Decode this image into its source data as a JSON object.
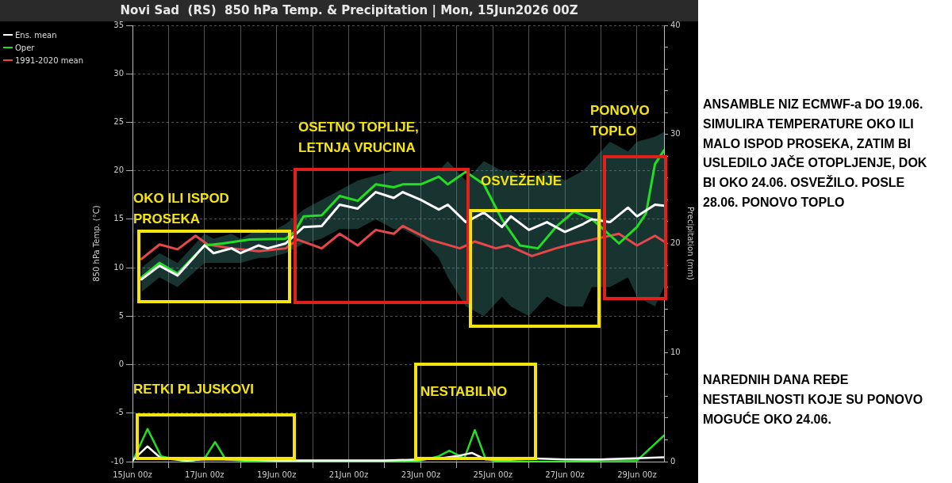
{
  "chart_data": {
    "type": "line",
    "title": "Novi Sad  (RS)  850 hPa Temp. & Precipitation | Mon, 15Jun2026 00Z",
    "ylabel": "850 hPa Temp. (°C)",
    "y2label": "Precipitation (mm)",
    "xlim": [
      "2026-06-15",
      "2026-06-29T18:00"
    ],
    "xticks": [
      {
        "value": "2026-06-15",
        "label": "15Jun 00z"
      },
      {
        "value": "2026-06-16",
        "label": null
      },
      {
        "value": "2026-06-17",
        "label": "17Jun 00z"
      },
      {
        "value": "2026-06-18",
        "label": null
      },
      {
        "value": "2026-06-19",
        "label": "19Jun 00z"
      },
      {
        "value": "2026-06-20",
        "label": null
      },
      {
        "value": "2026-06-21",
        "label": "21Jun 00z"
      },
      {
        "value": "2026-06-22",
        "label": null
      },
      {
        "value": "2026-06-23",
        "label": "23Jun 00z"
      },
      {
        "value": "2026-06-24",
        "label": null
      },
      {
        "value": "2026-06-25",
        "label": "25Jun 00z"
      },
      {
        "value": "2026-06-26",
        "label": null
      },
      {
        "value": "2026-06-27",
        "label": "27Jun 00z"
      },
      {
        "value": "2026-06-28",
        "label": null
      },
      {
        "value": "2026-06-29",
        "label": "29Jun 00z"
      }
    ],
    "ylim": [
      -10,
      35
    ],
    "yticks": [
      -10,
      -5,
      0,
      5,
      10,
      15,
      20,
      25,
      30,
      35
    ],
    "y2lim": [
      0,
      40
    ],
    "y2ticks": [
      0,
      {
        "value": 2,
        "label": null
      },
      {
        "value": 4,
        "label": null
      },
      {
        "value": 6,
        "label": null
      },
      {
        "value": 8,
        "label": null
      },
      10,
      {
        "value": 12,
        "label": null
      },
      {
        "value": 14,
        "label": null
      },
      {
        "value": 16,
        "label": null
      },
      {
        "value": 18,
        "label": null
      },
      20,
      {
        "value": 22,
        "label": null
      },
      {
        "value": 24,
        "label": null
      },
      {
        "value": 26,
        "label": null
      },
      {
        "value": 28,
        "label": null
      },
      30,
      {
        "value": 32,
        "label": null
      },
      {
        "value": 34,
        "label": null
      },
      {
        "value": 36,
        "label": null
      },
      {
        "value": 38,
        "label": null
      },
      40
    ],
    "grid": true,
    "legend": "left",
    "series": [
      {
        "name": "Ens. mean",
        "color": "#ffffff",
        "x": [
          "2026-06-15T06:00",
          "2026-06-15T18:00",
          "2026-06-16T06:00",
          "2026-06-17",
          "2026-06-17T06:00",
          "2026-06-17T18:00",
          "2026-06-18",
          "2026-06-18T12:00",
          "2026-06-18T18:00",
          "2026-06-19T06:00",
          "2026-06-19T18:00",
          "2026-06-20T06:00",
          "2026-06-20T18:00",
          "2026-06-21T06:00",
          "2026-06-21T18:00",
          "2026-06-22T06:00",
          "2026-06-22T12:00",
          "2026-06-23",
          "2026-06-23T12:00",
          "2026-06-23T18:00",
          "2026-06-24T06:00",
          "2026-06-24T18:00",
          "2026-06-25T06:00",
          "2026-06-25T12:00",
          "2026-06-26",
          "2026-06-26T12:00",
          "2026-06-27",
          "2026-06-27T12:00",
          "2026-06-27T18:00",
          "2026-06-28T06:00",
          "2026-06-28T18:00",
          "2026-06-29",
          "2026-06-29T12:00",
          "2026-06-29T18:00"
        ],
        "values": [
          8.8,
          10.2,
          9.2,
          12.3,
          11.5,
          12,
          11.5,
          12.3,
          12,
          12.5,
          14.2,
          14.3,
          16.5,
          16.1,
          17.8,
          17.2,
          17.8,
          17,
          16,
          16.5,
          14.7,
          15.7,
          14.2,
          15.3,
          13.9,
          14.7,
          13.7,
          14.5,
          15,
          14.7,
          16.2,
          15.3,
          16.5,
          16.4
        ],
        "lower": [
          7.5,
          9,
          8,
          10.5,
          10.5,
          10.5,
          10.5,
          11,
          11,
          11.5,
          12.5,
          13,
          14,
          14,
          15,
          14,
          14,
          13,
          11,
          9,
          6,
          5,
          7,
          6,
          5,
          7,
          6,
          6,
          8,
          8,
          9,
          7,
          6,
          8
        ],
        "upper": [
          10,
          11.5,
          10.5,
          13.5,
          13,
          13.5,
          13,
          14,
          13.5,
          14.5,
          16,
          17,
          18,
          19,
          19.5,
          20,
          20,
          20,
          20,
          21,
          19,
          21,
          20,
          20,
          19,
          20,
          19,
          20,
          21,
          23,
          22,
          23,
          23.5,
          24
        ]
      },
      {
        "name": "Oper",
        "color": "#22dd22",
        "x": [
          "2026-06-15T06:00",
          "2026-06-15T18:00",
          "2026-06-16T06:00",
          "2026-06-17",
          "2026-06-17T12:00",
          "2026-06-18T06:00",
          "2026-06-19T06:00",
          "2026-06-19T12:00",
          "2026-06-19T18:00",
          "2026-06-20T06:00",
          "2026-06-20T18:00",
          "2026-06-21T06:00",
          "2026-06-21T18:00",
          "2026-06-22T06:00",
          "2026-06-22T12:00",
          "2026-06-23",
          "2026-06-23T12:00",
          "2026-06-23T18:00",
          "2026-06-24T06:00",
          "2026-06-24T18:00",
          "2026-06-25T06:00",
          "2026-06-25T18:00",
          "2026-06-26T06:00",
          "2026-06-26T18:00",
          "2026-06-27T06:00",
          "2026-06-27T18:00",
          "2026-06-28",
          "2026-06-28T12:00",
          "2026-06-29",
          "2026-06-29T06:00",
          "2026-06-29T12:00",
          "2026-06-29T18:00"
        ],
        "values": [
          9,
          10.5,
          9.4,
          12.3,
          12.5,
          12.9,
          13,
          13.7,
          15.3,
          15.4,
          17.4,
          16.9,
          18.6,
          18.3,
          18.6,
          18.6,
          19.4,
          18.6,
          19.9,
          18.6,
          15,
          12.3,
          12,
          14.2,
          15.8,
          15,
          14.2,
          12.5,
          14.2,
          15.6,
          20.7,
          22.1
        ]
      },
      {
        "name": "1991-2020 mean",
        "color": "#e8474a",
        "x": [
          "2026-06-15T06:00",
          "2026-06-15T18:00",
          "2026-06-16T06:00",
          "2026-06-16T18:00",
          "2026-06-17T02:00",
          "2026-06-17T18:00",
          "2026-06-18T12:00",
          "2026-06-19T06:00",
          "2026-06-19T14:00",
          "2026-06-20T06:00",
          "2026-06-20T18:00",
          "2026-06-21T06:00",
          "2026-06-21T18:00",
          "2026-06-22T06:00",
          "2026-06-22T12:00",
          "2026-06-23T06:00",
          "2026-06-24T02:00",
          "2026-06-24T12:00",
          "2026-06-25T02:00",
          "2026-06-25T10:00",
          "2026-06-26T02:00",
          "2026-06-26T18:00",
          "2026-06-27T06:00",
          "2026-06-27T18:00",
          "2026-06-28T12:00",
          "2026-06-29",
          "2026-06-29T12:00",
          "2026-06-29T18:00"
        ],
        "values": [
          10.9,
          12.4,
          11.9,
          13.3,
          12.4,
          12,
          11.7,
          12,
          12.9,
          12,
          13.5,
          12.3,
          13.9,
          13.5,
          14.3,
          12.9,
          12,
          12.7,
          12,
          12.3,
          11.2,
          12,
          12.5,
          12.9,
          13.5,
          12.3,
          13.3,
          12.7
        ]
      },
      {
        "color": "#ffffff",
        "axis": "y2",
        "x": [
          "2026-06-15",
          "2026-06-15T10:00",
          "2026-06-15T19:00",
          "2026-06-16T12:00",
          "2026-06-17",
          "2026-06-18",
          "2026-06-19",
          "2026-06-20",
          "2026-06-21",
          "2026-06-22",
          "2026-06-23",
          "2026-06-23T12:00",
          "2026-06-24",
          "2026-06-24T10:00",
          "2026-06-24T19:00",
          "2026-06-25T12:00",
          "2026-06-26",
          "2026-06-27",
          "2026-06-28",
          "2026-06-29",
          "2026-06-29T18:00"
        ],
        "values": [
          0.1,
          1.4,
          0.3,
          0.1,
          0.2,
          0.2,
          0.1,
          0.1,
          0.1,
          0.1,
          0.2,
          0.3,
          0.5,
          0.8,
          0.2,
          0.2,
          0.3,
          0.2,
          0.2,
          0.3,
          0.4
        ]
      },
      {
        "color": "#22dd22",
        "axis": "y2",
        "x": [
          "2026-06-15",
          "2026-06-15T10:00",
          "2026-06-15T19:00",
          "2026-06-16T12:00",
          "2026-06-17",
          "2026-06-17T07:00",
          "2026-06-17T14:00",
          "2026-06-18",
          "2026-06-19",
          "2026-06-20",
          "2026-06-21",
          "2026-06-22",
          "2026-06-23",
          "2026-06-23T12:00",
          "2026-06-23T19:00",
          "2026-06-24T05:00",
          "2026-06-24T12:00",
          "2026-06-24T19:00",
          "2026-06-25",
          "2026-06-26",
          "2026-06-27",
          "2026-06-28",
          "2026-06-29",
          "2026-06-29T18:00"
        ],
        "values": [
          0,
          3,
          0.5,
          0,
          0.3,
          1.8,
          0.2,
          0.1,
          0,
          0,
          0,
          0,
          0.1,
          0.5,
          1,
          0.3,
          2.9,
          0.3,
          0.1,
          0,
          0,
          0.1,
          0.1,
          2.4
        ]
      }
    ],
    "annotations": [
      "OKO ILI ISPOD PROSEKA",
      "OSETNO TOPLIJE, LETNJA VRUCINA",
      "OSVEŽENJE",
      "PONOVO TOPLO",
      "RETKI PLJUSKOVI",
      "NESTABILNO",
      "ANSAMBLE NIZ ECMWF-a DO 19.06. SIMULIRA TEMPERATURE OKO ILI MALO ISPOD PROSEKA, ZATIM BI USLEDILO JAČE OTOPLJENJE, DOK BI OKO 24.06. OSVEŽILO. POSLE 28.06. PONOVO TOPLO",
      "NAREDNIH DANA REĐE NESTABILNOSTI KOJE SU PONOVO MOGUĆE OKO 24.06."
    ]
  }
}
